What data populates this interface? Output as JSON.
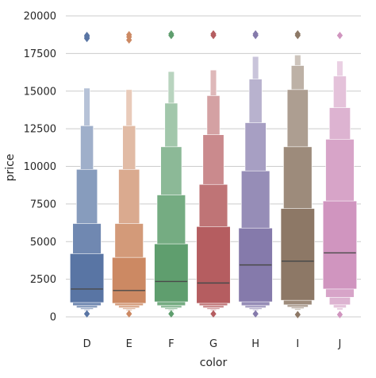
{
  "chart_data": {
    "type": "boxen",
    "title": "",
    "xlabel": "color",
    "ylabel": "price",
    "ylim": [
      -400,
      20200
    ],
    "yticks": [
      0,
      2500,
      5000,
      7500,
      10000,
      12500,
      15000,
      17500,
      20000
    ],
    "ytick_labels": [
      "0",
      "2500",
      "5000",
      "7500",
      "10000",
      "12500",
      "15000",
      "17500",
      "20000"
    ],
    "grid": "y",
    "categories": [
      "D",
      "E",
      "F",
      "G",
      "H",
      "I",
      "J"
    ],
    "series": [
      {
        "category": "D",
        "color": "#5975a4",
        "median": 1850,
        "levels": [
          [
            950,
            4200
          ],
          [
            750,
            6200
          ],
          [
            600,
            9800
          ],
          [
            500,
            12700
          ],
          [
            420,
            15200
          ]
        ],
        "outliers_low": [
          200
        ],
        "outliers_high": [
          18500,
          18600,
          18700
        ]
      },
      {
        "category": "E",
        "color": "#cc8963",
        "median": 1750,
        "levels": [
          [
            900,
            3950
          ],
          [
            750,
            6200
          ],
          [
            600,
            9800
          ],
          [
            500,
            12700
          ],
          [
            400,
            15100
          ]
        ],
        "outliers_low": [
          200
        ],
        "outliers_high": [
          18400,
          18600,
          18750
        ]
      },
      {
        "category": "F",
        "color": "#5f9e6e",
        "median": 2350,
        "levels": [
          [
            1000,
            4850
          ],
          [
            750,
            8100
          ],
          [
            600,
            11300
          ],
          [
            500,
            14200
          ],
          [
            420,
            16300
          ]
        ],
        "outliers_low": [
          200
        ],
        "outliers_high": [
          18700,
          18800
        ]
      },
      {
        "category": "G",
        "color": "#b55d60",
        "median": 2250,
        "levels": [
          [
            900,
            6000
          ],
          [
            750,
            8800
          ],
          [
            600,
            12100
          ],
          [
            500,
            14700
          ],
          [
            420,
            16400
          ]
        ],
        "outliers_low": [
          200
        ],
        "outliers_high": [
          18700,
          18800
        ]
      },
      {
        "category": "H",
        "color": "#857aab",
        "median": 3450,
        "levels": [
          [
            1000,
            5900
          ],
          [
            750,
            9700
          ],
          [
            600,
            12900
          ],
          [
            500,
            15800
          ],
          [
            420,
            17300
          ]
        ],
        "outliers_low": [
          200
        ],
        "outliers_high": [
          18700,
          18800
        ]
      },
      {
        "category": "I",
        "color": "#8d7866",
        "median": 3700,
        "levels": [
          [
            1100,
            7200
          ],
          [
            800,
            11300
          ],
          [
            650,
            15100
          ],
          [
            550,
            16700
          ],
          [
            450,
            17400
          ]
        ],
        "outliers_low": [
          150
        ],
        "outliers_high": [
          18700,
          18800
        ]
      },
      {
        "category": "J",
        "color": "#d095bf",
        "median": 4250,
        "levels": [
          [
            1850,
            7700
          ],
          [
            1300,
            11800
          ],
          [
            800,
            13900
          ],
          [
            600,
            16000
          ],
          [
            450,
            17000
          ]
        ],
        "outliers_low": [
          150
        ],
        "outliers_high": [
          18700
        ]
      }
    ]
  }
}
